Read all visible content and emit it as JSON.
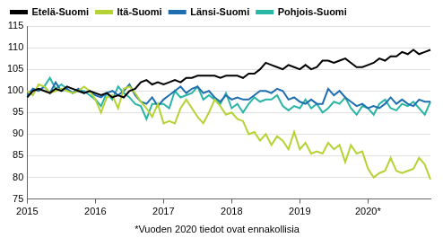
{
  "chart_data": {
    "type": "line",
    "annotations": [
      "*Vuoden 2020 tiedot ovat ennakollisia"
    ],
    "categories": [
      "2015",
      null,
      null,
      null,
      null,
      null,
      null,
      null,
      null,
      null,
      null,
      null,
      "2016",
      null,
      null,
      null,
      null,
      null,
      null,
      null,
      null,
      null,
      null,
      null,
      "2017",
      null,
      null,
      null,
      null,
      null,
      null,
      null,
      null,
      null,
      null,
      null,
      "2018",
      null,
      null,
      null,
      null,
      null,
      null,
      null,
      null,
      null,
      null,
      null,
      "2019",
      null,
      null,
      null,
      null,
      null,
      null,
      null,
      null,
      null,
      null,
      null,
      "2020*",
      null,
      null,
      null,
      null,
      null,
      null,
      null,
      null,
      null,
      null,
      null
    ],
    "series": [
      {
        "name": "Etelä-Suomi",
        "color": "#000000",
        "values": [
          98.5,
          100,
          100.5,
          100,
          99.5,
          100.5,
          100,
          101,
          100.5,
          100,
          99.5,
          100,
          99.5,
          99,
          99.5,
          98.5,
          99,
          98.5,
          100,
          100.5,
          102,
          102.5,
          101.5,
          102,
          101.5,
          102,
          102.5,
          102,
          103,
          103,
          103.5,
          103.5,
          103.5,
          103.5,
          103,
          103.5,
          103.5,
          103.5,
          103,
          104,
          104,
          105,
          106.5,
          106,
          105.5,
          105,
          106,
          105.5,
          105,
          106,
          105,
          105.5,
          107,
          107,
          106.5,
          107,
          107.5,
          106.5,
          105.5,
          105.5,
          106,
          106.5,
          107.5,
          107,
          108,
          108,
          109,
          108.5,
          109.5,
          108.5,
          109,
          109.5
        ]
      },
      {
        "name": "Itä-Suomi",
        "color": "#b5d334",
        "values": [
          100,
          99,
          101.5,
          101,
          99.5,
          100,
          100.5,
          100,
          99.5,
          100,
          101,
          100,
          98,
          95,
          98.5,
          99,
          96,
          100.5,
          101,
          99.5,
          97.5,
          96,
          94,
          97,
          92.5,
          93,
          92.5,
          96,
          98,
          96,
          94,
          92.5,
          95,
          98,
          96.5,
          94.5,
          95,
          93.5,
          93,
          90,
          90.5,
          88.5,
          90,
          87.5,
          89.5,
          88.5,
          86.5,
          90.5,
          86.5,
          88,
          85.5,
          86,
          85.5,
          88,
          86.5,
          87.5,
          83.5,
          87.5,
          85.5,
          86,
          82,
          80,
          81,
          81.5,
          84.5,
          81.5,
          81,
          81.5,
          82,
          84.5,
          83,
          79.5
        ]
      },
      {
        "name": "Länsi-Suomi",
        "color": "#1f6eb0",
        "values": [
          99,
          100.5,
          100,
          101,
          99.5,
          102,
          100,
          100.5,
          99.5,
          100.5,
          99.5,
          100,
          99,
          98.5,
          99.5,
          100,
          99,
          100,
          101.5,
          99,
          97.5,
          97,
          98.5,
          96.5,
          98,
          99,
          100,
          101,
          99.5,
          100.5,
          101,
          99.5,
          100,
          98.5,
          97.5,
          99,
          98,
          98.5,
          98,
          98,
          99,
          100,
          100,
          99.5,
          100.5,
          100,
          98,
          98.5,
          97.5,
          97,
          98,
          97,
          97,
          100.5,
          99,
          100,
          98.5,
          97.5,
          96.5,
          97,
          96,
          96.5,
          96,
          97,
          98.5,
          97,
          98,
          97,
          96.5,
          98,
          97.5,
          97.5
        ]
      },
      {
        "name": "Pohjois-Suomi",
        "color": "#2ab5a5",
        "values": [
          98.5,
          100.5,
          100,
          101,
          103,
          100.5,
          101.5,
          100.5,
          99.5,
          100,
          100,
          99,
          98,
          96.5,
          99.5,
          98,
          101,
          99.5,
          98.5,
          97,
          96.5,
          93.5,
          97,
          97,
          97,
          96,
          100,
          98.5,
          99,
          99.5,
          101,
          98,
          99,
          98,
          97,
          99.5,
          96,
          97,
          95,
          97,
          98.5,
          97.5,
          98,
          98,
          99,
          96.5,
          95.5,
          96.5,
          96,
          98,
          96,
          97,
          95,
          96,
          97.5,
          97,
          98.5,
          96,
          94.5,
          96.5,
          96,
          94.5,
          97,
          98,
          96,
          95.5,
          97,
          96.5,
          97.5,
          96,
          94.5,
          97.5
        ]
      }
    ],
    "ylim": [
      75,
      115
    ],
    "yticks": [
      75,
      80,
      85,
      90,
      95,
      100,
      105,
      110,
      115
    ],
    "grid": true,
    "legend": "top-left"
  }
}
